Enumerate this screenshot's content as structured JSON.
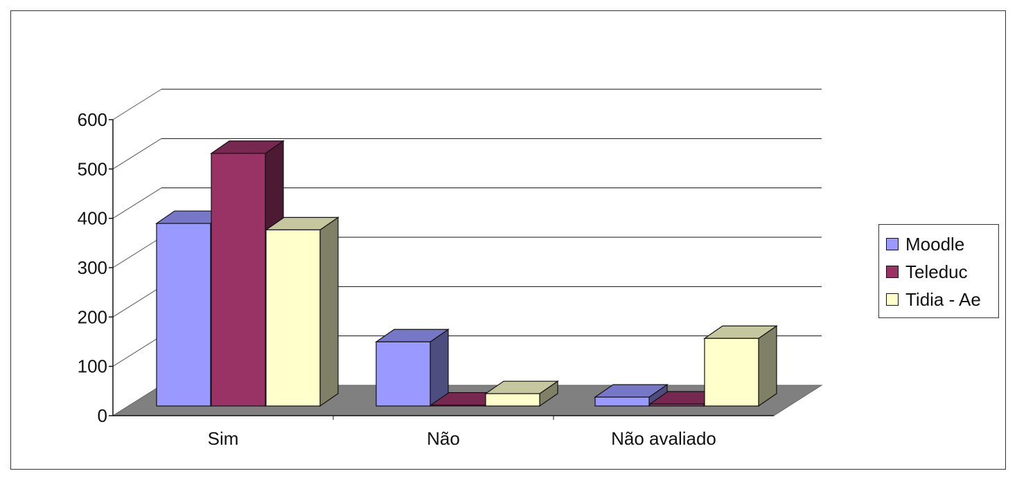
{
  "chart_data": {
    "type": "bar",
    "title": "",
    "xlabel": "",
    "ylabel": "",
    "categories": [
      "Sim",
      "Não",
      "Não avaliado"
    ],
    "series": [
      {
        "name": "Moodle",
        "color": "#9999ff",
        "values": [
          370,
          130,
          18
        ]
      },
      {
        "name": "Teleduc",
        "color": "#993366",
        "values": [
          512,
          2,
          4
        ]
      },
      {
        "name": "Tidia - Ae",
        "color": "#ffffcc",
        "values": [
          357,
          25,
          137
        ]
      }
    ],
    "ylim": [
      0,
      600
    ],
    "yticks": [
      0,
      100,
      200,
      300,
      400,
      500,
      600
    ],
    "grid": true,
    "legend": "right",
    "style": "3d-clustered"
  }
}
